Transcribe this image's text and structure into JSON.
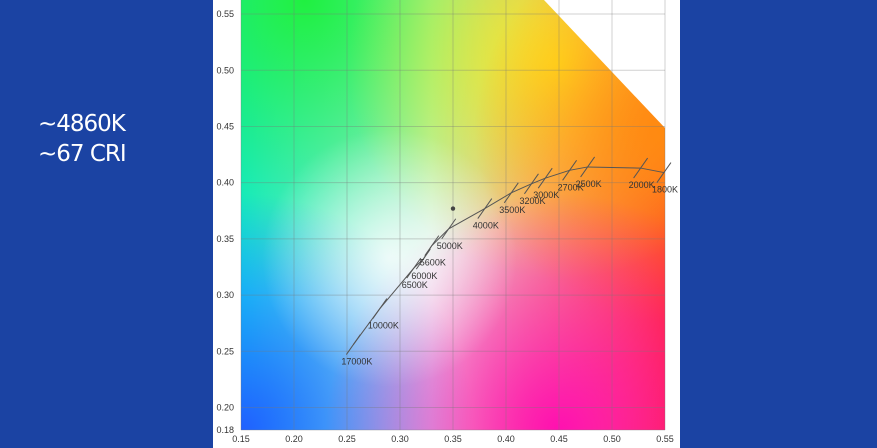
{
  "side_text": [
    "~4860K",
    "~67 CRI"
  ],
  "chart_data": {
    "type": "scatter",
    "xlim": [
      0.15,
      0.55
    ],
    "ylim": [
      0.18,
      0.5625
    ],
    "xticks": [
      0.15,
      {
        "value": 0.2,
        "label": "0.20"
      },
      0.25,
      {
        "value": 0.3,
        "label": "0.30"
      },
      0.35,
      {
        "value": 0.4,
        "label": "0.40"
      },
      0.45,
      {
        "value": 0.5,
        "label": "0.50"
      },
      0.55
    ],
    "yticks": [
      0.18,
      {
        "value": 0.2,
        "label": "0.20"
      },
      0.25,
      {
        "value": 0.3,
        "label": "0.30"
      },
      0.35,
      {
        "value": 0.4,
        "label": "0.40"
      },
      0.45,
      {
        "value": 0.5,
        "label": "0.50"
      },
      0.55
    ],
    "grid": true,
    "locus": {
      "labels": [
        "17000K",
        "10000K",
        "6500K",
        "6000K",
        "5600K",
        "5000K",
        "4000K",
        "3500K",
        "3200K",
        "3000K",
        "2700K",
        "2500K",
        "2000K",
        "1800K"
      ],
      "x": [
        0.256,
        0.281,
        0.313,
        0.322,
        0.33,
        0.346,
        0.38,
        0.405,
        0.424,
        0.437,
        0.46,
        0.477,
        0.527,
        0.549
      ],
      "y": [
        0.256,
        0.288,
        0.324,
        0.332,
        0.344,
        0.359,
        0.377,
        0.391,
        0.399,
        0.404,
        0.411,
        0.414,
        0.413,
        0.409
      ],
      "color": "#555555"
    },
    "point": {
      "x": 0.35,
      "y": 0.377,
      "color": "#444444"
    }
  }
}
